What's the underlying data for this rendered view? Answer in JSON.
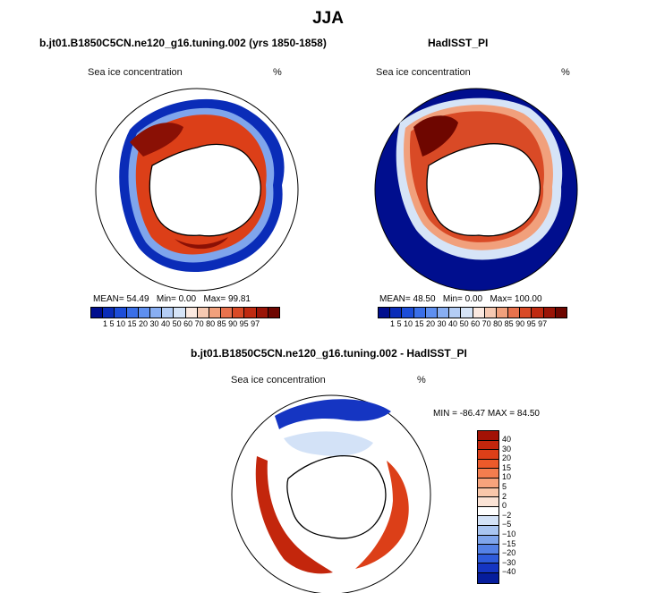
{
  "figure": {
    "title": "JJA"
  },
  "panels": [
    {
      "title": "b.jt01.B1850C5CN.ne120_g16.tuning.002 (yrs 1850-1858)",
      "field_label": "Sea ice concentration",
      "units": "%",
      "mean_label": "MEAN=",
      "mean": "54.49",
      "min_label": "Min=",
      "min": "0.00",
      "max_label": "Max=",
      "max": "99.81"
    },
    {
      "title": "HadISST_PI",
      "field_label": "Sea ice concentration",
      "units": "%",
      "mean_label": "MEAN=",
      "mean": "48.50",
      "min_label": "Min=",
      "min": "0.00",
      "max_label": "Max=",
      "max": "100.00"
    },
    {
      "title": "b.jt01.B1850C5CN.ne120_g16.tuning.002 - HadISST_PI",
      "field_label": "Sea ice concentration",
      "units": "%",
      "minmax_text": "MIN = -86.47 MAX =  84.50"
    }
  ],
  "colorbar_abs": {
    "tick_labels": "1 5 10 15 20 30 40 50 60 70 80 85 90 95 97",
    "colors": [
      "#000e8e",
      "#0a2cb8",
      "#1c4dd8",
      "#3a6fe8",
      "#5e8ff0",
      "#88aef2",
      "#b4cdf5",
      "#d6e4f7",
      "#fbe9e0",
      "#f6c9b2",
      "#f1a07c",
      "#e8724d",
      "#d94a26",
      "#bf2a10",
      "#9a1406",
      "#6e0600"
    ]
  },
  "colorbar_diff": {
    "tick_labels": [
      "40",
      "30",
      "20",
      "15",
      "10",
      "5",
      "2",
      "0",
      "−2",
      "−5",
      "−10",
      "−15",
      "−20",
      "−30",
      "−40"
    ],
    "colors": [
      "#a21205",
      "#c3260c",
      "#dc3f18",
      "#ec5a2a",
      "#f47d4e",
      "#f7a37c",
      "#f9c7aa",
      "#fbe3d5",
      "#ffffff",
      "#d3e2f7",
      "#a9c5f1",
      "#7fa5ec",
      "#5481e6",
      "#2e5bdb",
      "#1535c2",
      "#061d9c"
    ]
  }
}
